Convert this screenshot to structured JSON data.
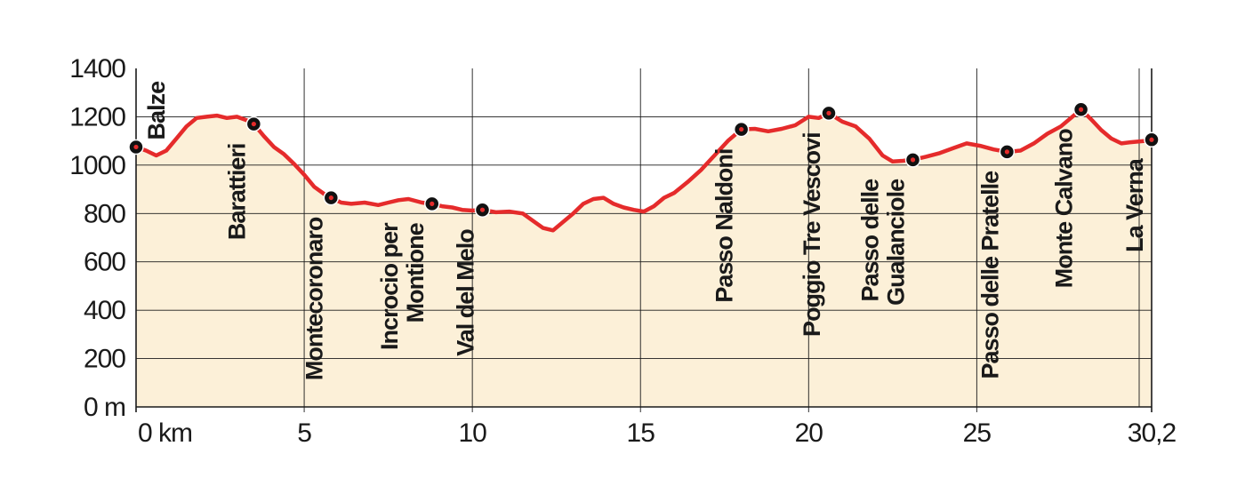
{
  "chart_data": {
    "type": "area",
    "title": "",
    "xlabel": "",
    "ylabel": "",
    "xlim": [
      0,
      30.2
    ],
    "ylim": [
      0,
      1400
    ],
    "x_ticks": [
      {
        "value": 0,
        "label": "0 km"
      },
      {
        "value": 5,
        "label": "5"
      },
      {
        "value": 10,
        "label": "10"
      },
      {
        "value": 15,
        "label": "15"
      },
      {
        "value": 20,
        "label": "20"
      },
      {
        "value": 25,
        "label": "25"
      },
      {
        "value": 30.2,
        "label": "30,2"
      }
    ],
    "y_ticks": [
      {
        "value": 1400,
        "label": "1400"
      },
      {
        "value": 1200,
        "label": "1200"
      },
      {
        "value": 1000,
        "label": "1000"
      },
      {
        "value": 800,
        "label": "800"
      },
      {
        "value": 600,
        "label": "600"
      },
      {
        "value": 400,
        "label": "400"
      },
      {
        "value": 200,
        "label": "200"
      },
      {
        "value": 0,
        "label": "0 m"
      }
    ],
    "grid": true,
    "colors": {
      "line": "#e52b2b",
      "fill": "#fcf0d8",
      "grid": "#1a1a1a",
      "marker": "#111111",
      "marker_dot": "#e52b2b"
    },
    "series": [
      {
        "x": [
          0,
          0.3,
          0.6,
          0.9,
          1.2,
          1.5,
          1.8,
          2.1,
          2.4,
          2.7,
          3.0,
          3.3,
          3.5,
          3.8,
          4.1,
          4.4,
          4.7,
          5.0,
          5.3,
          5.6,
          5.8,
          6.1,
          6.4,
          6.8,
          7.2,
          7.5,
          7.8,
          8.1,
          8.5,
          8.8,
          9.1,
          9.4,
          9.7,
          10.0,
          10.3,
          10.7,
          11.1,
          11.5,
          11.8,
          12.1,
          12.4,
          12.7,
          13.0,
          13.3,
          13.6,
          13.9,
          14.2,
          14.5,
          14.8,
          15.1,
          15.4,
          15.7,
          16.0,
          16.4,
          16.8,
          17.2,
          17.6,
          18.0,
          18.4,
          18.8,
          19.2,
          19.6,
          20.0,
          20.3,
          20.6,
          21.0,
          21.4,
          21.8,
          22.2,
          22.5,
          22.8,
          23.1,
          23.5,
          23.9,
          24.3,
          24.7,
          25.1,
          25.5,
          25.9,
          26.3,
          26.7,
          27.1,
          27.5,
          27.8,
          28.1,
          28.4,
          28.7,
          29.0,
          29.3,
          29.6,
          30.0,
          30.2
        ],
        "y": [
          1075,
          1060,
          1040,
          1060,
          1110,
          1160,
          1195,
          1200,
          1205,
          1195,
          1200,
          1185,
          1170,
          1120,
          1075,
          1045,
          1005,
          960,
          910,
          880,
          865,
          845,
          840,
          845,
          835,
          845,
          855,
          860,
          845,
          840,
          830,
          825,
          815,
          812,
          815,
          805,
          808,
          800,
          770,
          740,
          730,
          765,
          800,
          840,
          860,
          865,
          840,
          825,
          815,
          808,
          830,
          865,
          885,
          930,
          980,
          1040,
          1100,
          1148,
          1150,
          1140,
          1150,
          1165,
          1200,
          1195,
          1215,
          1180,
          1160,
          1110,
          1040,
          1015,
          1018,
          1022,
          1035,
          1050,
          1070,
          1090,
          1080,
          1065,
          1055,
          1060,
          1090,
          1130,
          1160,
          1195,
          1230,
          1190,
          1145,
          1110,
          1090,
          1095,
          1100,
          1105
        ]
      }
    ],
    "waypoints": [
      {
        "name": "Balze",
        "x": 0,
        "y": 1075
      },
      {
        "name": "Barattieri",
        "x": 3.5,
        "y": 1170
      },
      {
        "name": "Montecoronaro",
        "x": 5.8,
        "y": 865
      },
      {
        "name": "Incrocio per Montione",
        "x": 8.8,
        "y": 840
      },
      {
        "name": "Val del Melo",
        "x": 10.3,
        "y": 815
      },
      {
        "name": "Passo Naldoni",
        "x": 18.0,
        "y": 1148
      },
      {
        "name": "Poggio Tre Vescovi",
        "x": 20.6,
        "y": 1215
      },
      {
        "name": "Passo delle Gualanciole",
        "x": 23.1,
        "y": 1022
      },
      {
        "name": "Passo delle Pratelle",
        "x": 25.9,
        "y": 1055
      },
      {
        "name": "Monte Calvano",
        "x": 28.1,
        "y": 1230
      },
      {
        "name": "La Verna",
        "x": 30.2,
        "y": 1105
      }
    ]
  }
}
